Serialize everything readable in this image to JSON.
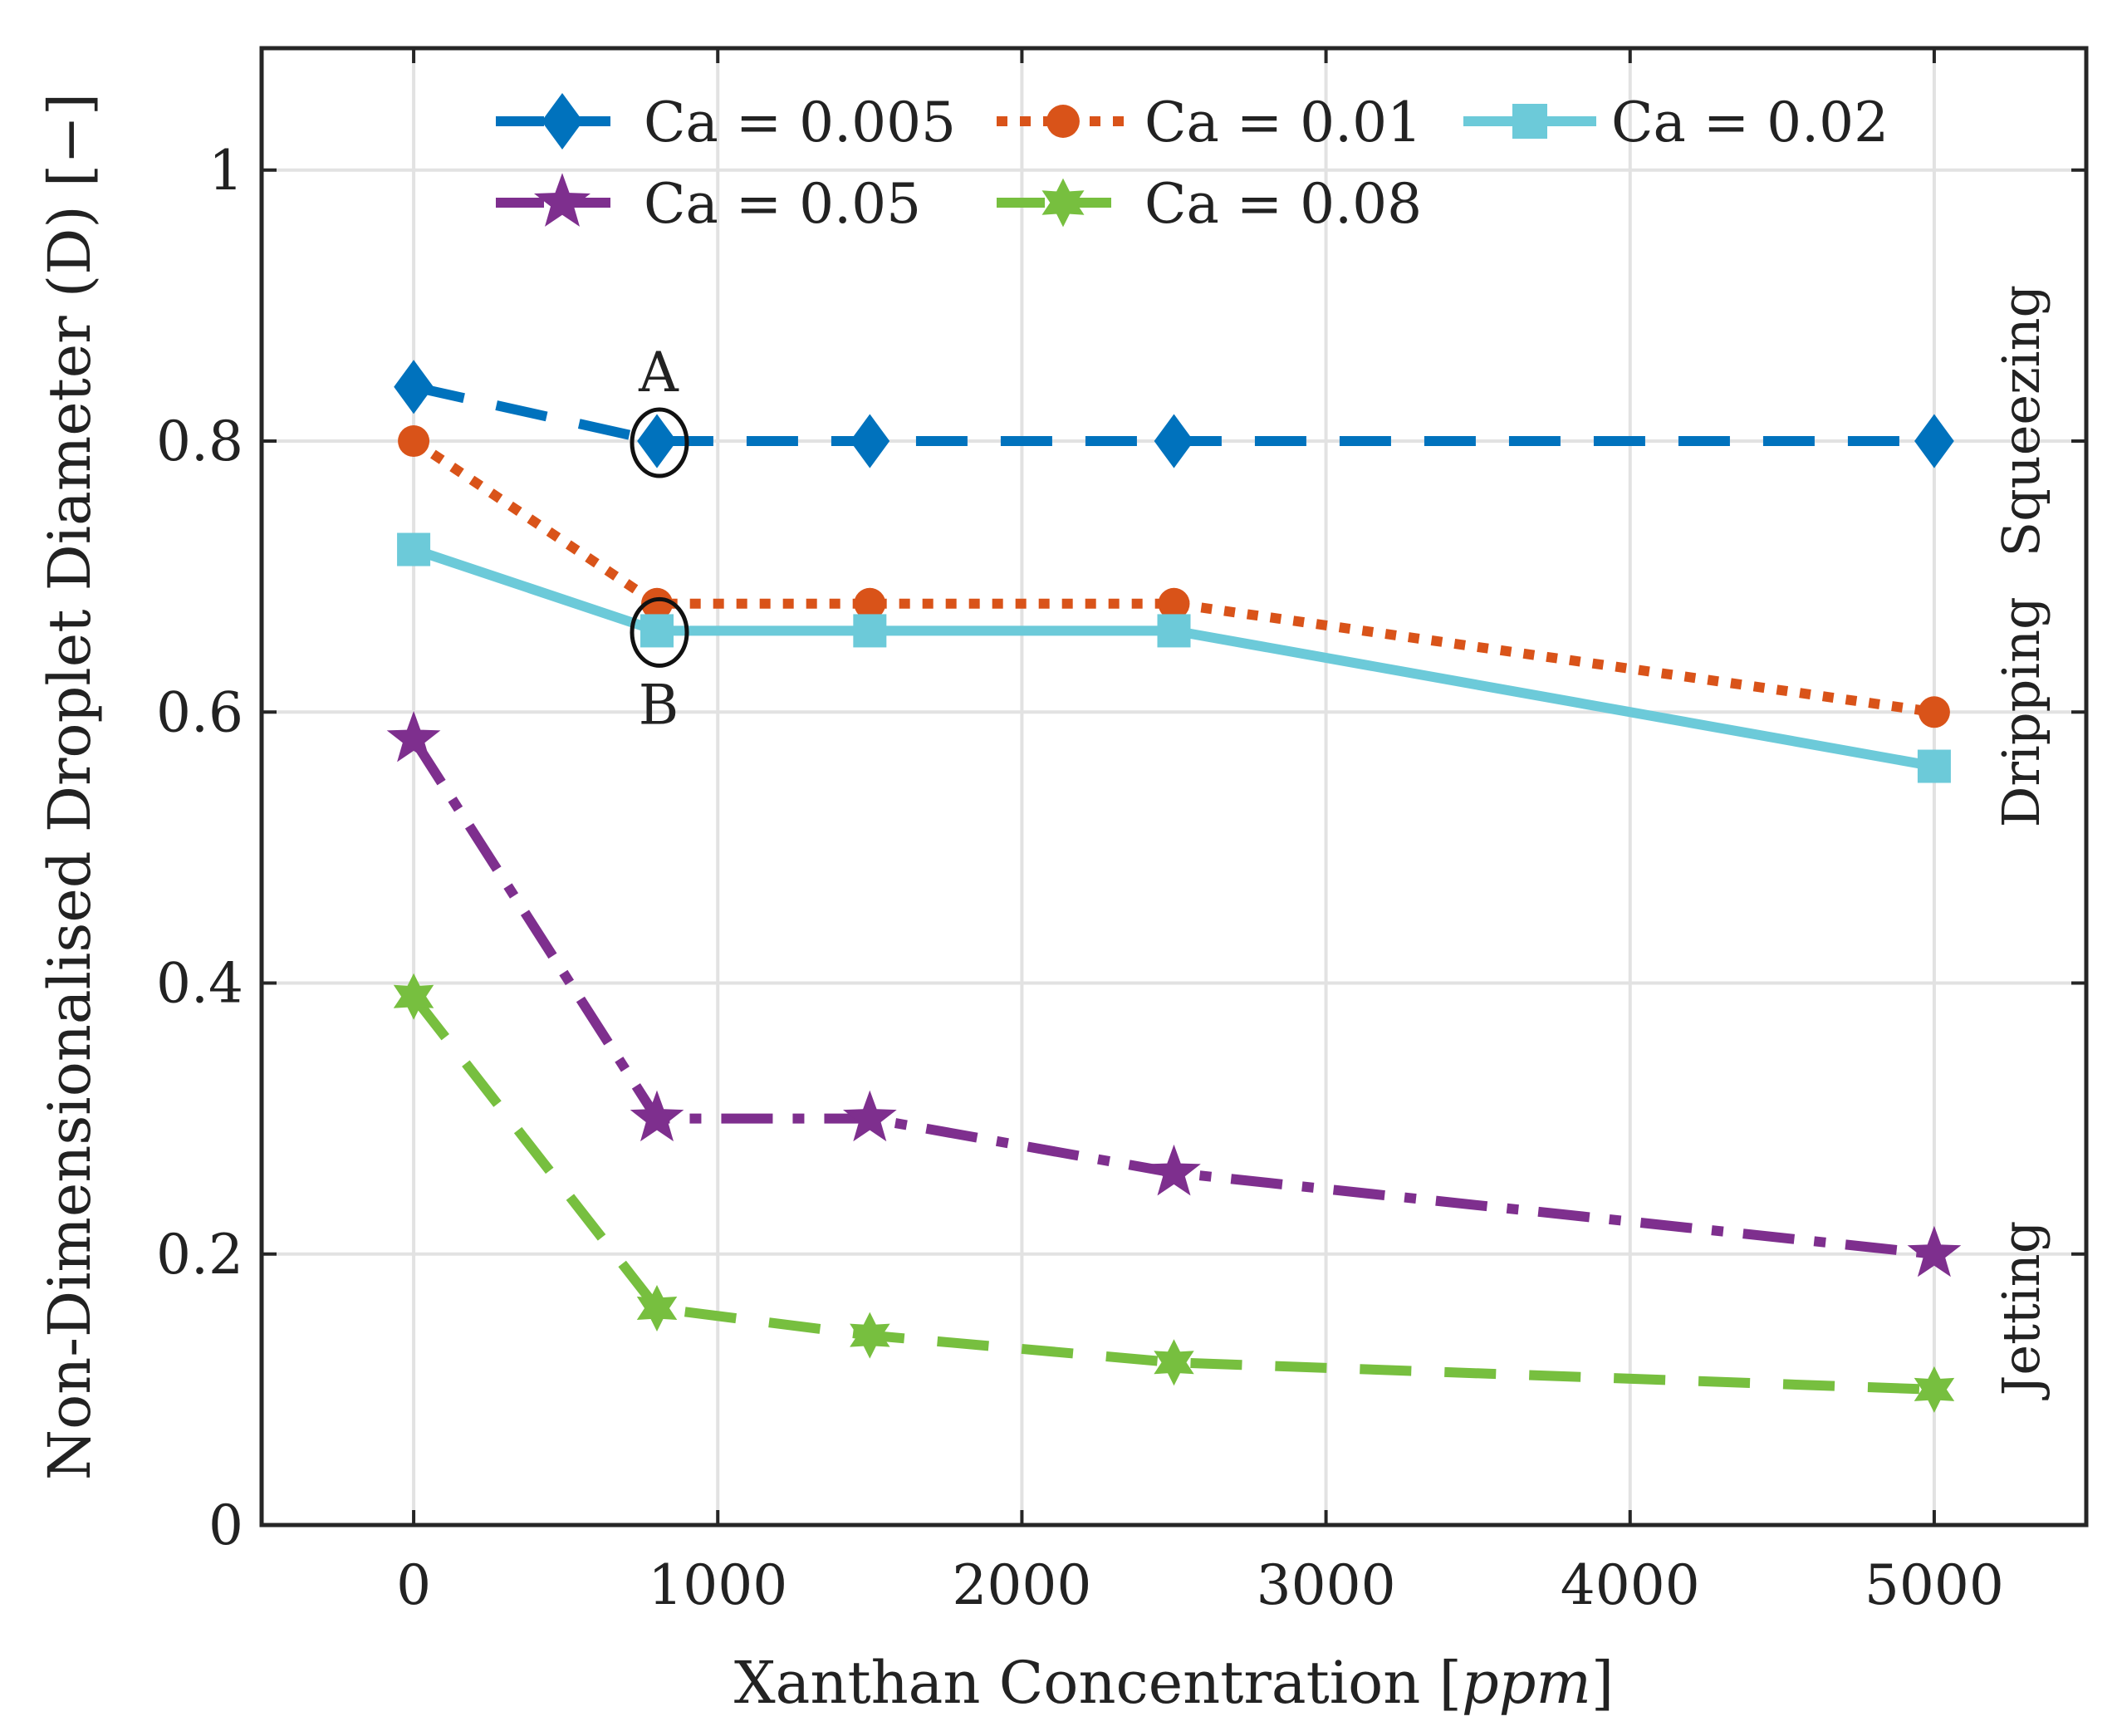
{
  "chart_data": {
    "type": "line",
    "xlabel": "Xanthan Concentration",
    "xlabel_unit": "ppm",
    "ylabel": "Non-Dimensionalised Droplet Diameter (D) [−]",
    "xlim": [
      -500,
      5500
    ],
    "ylim": [
      0,
      1.09
    ],
    "xticks": [
      0,
      1000,
      2000,
      3000,
      4000,
      5000
    ],
    "xtick_labels": [
      "0",
      "1000",
      "2000",
      "3000",
      "4000",
      "5000"
    ],
    "yticks": [
      0,
      0.2,
      0.4,
      0.6,
      0.8,
      1.0
    ],
    "ytick_labels": [
      "0",
      "0.2",
      "0.4",
      "0.6",
      "0.8",
      "1"
    ],
    "grid": true,
    "legend_position": "top",
    "x": [
      0,
      800,
      1500,
      2500,
      5000
    ],
    "series": [
      {
        "name": "Ca = 0.005",
        "values": [
          0.84,
          0.8,
          0.8,
          0.8,
          0.8
        ],
        "color": "#0072BD",
        "marker": "diamond",
        "line_style": "dashed"
      },
      {
        "name": "Ca = 0.01",
        "values": [
          0.8,
          0.68,
          0.68,
          0.68,
          0.6
        ],
        "color": "#D95319",
        "marker": "circle",
        "line_style": "dotted"
      },
      {
        "name": "Ca = 0.02",
        "values": [
          0.72,
          0.66,
          0.66,
          0.66,
          0.56
        ],
        "color": "#6CCAD9",
        "marker": "square",
        "line_style": "solid"
      },
      {
        "name": "Ca = 0.05",
        "values": [
          0.58,
          0.3,
          0.3,
          0.26,
          0.2
        ],
        "color": "#7E2F8E",
        "marker": "star",
        "line_style": "dash-dot"
      },
      {
        "name": "Ca = 0.08",
        "values": [
          0.39,
          0.16,
          0.14,
          0.12,
          0.1
        ],
        "color": "#77BF3F",
        "marker": "hexagram",
        "line_style": "dashed"
      }
    ],
    "annotations": [
      {
        "text": "A",
        "x": 800,
        "y": 0.8
      },
      {
        "text": "B",
        "x": 800,
        "y": 0.66
      }
    ],
    "regime_labels": [
      "Squeezing",
      "Dripping",
      "Jetting"
    ]
  }
}
